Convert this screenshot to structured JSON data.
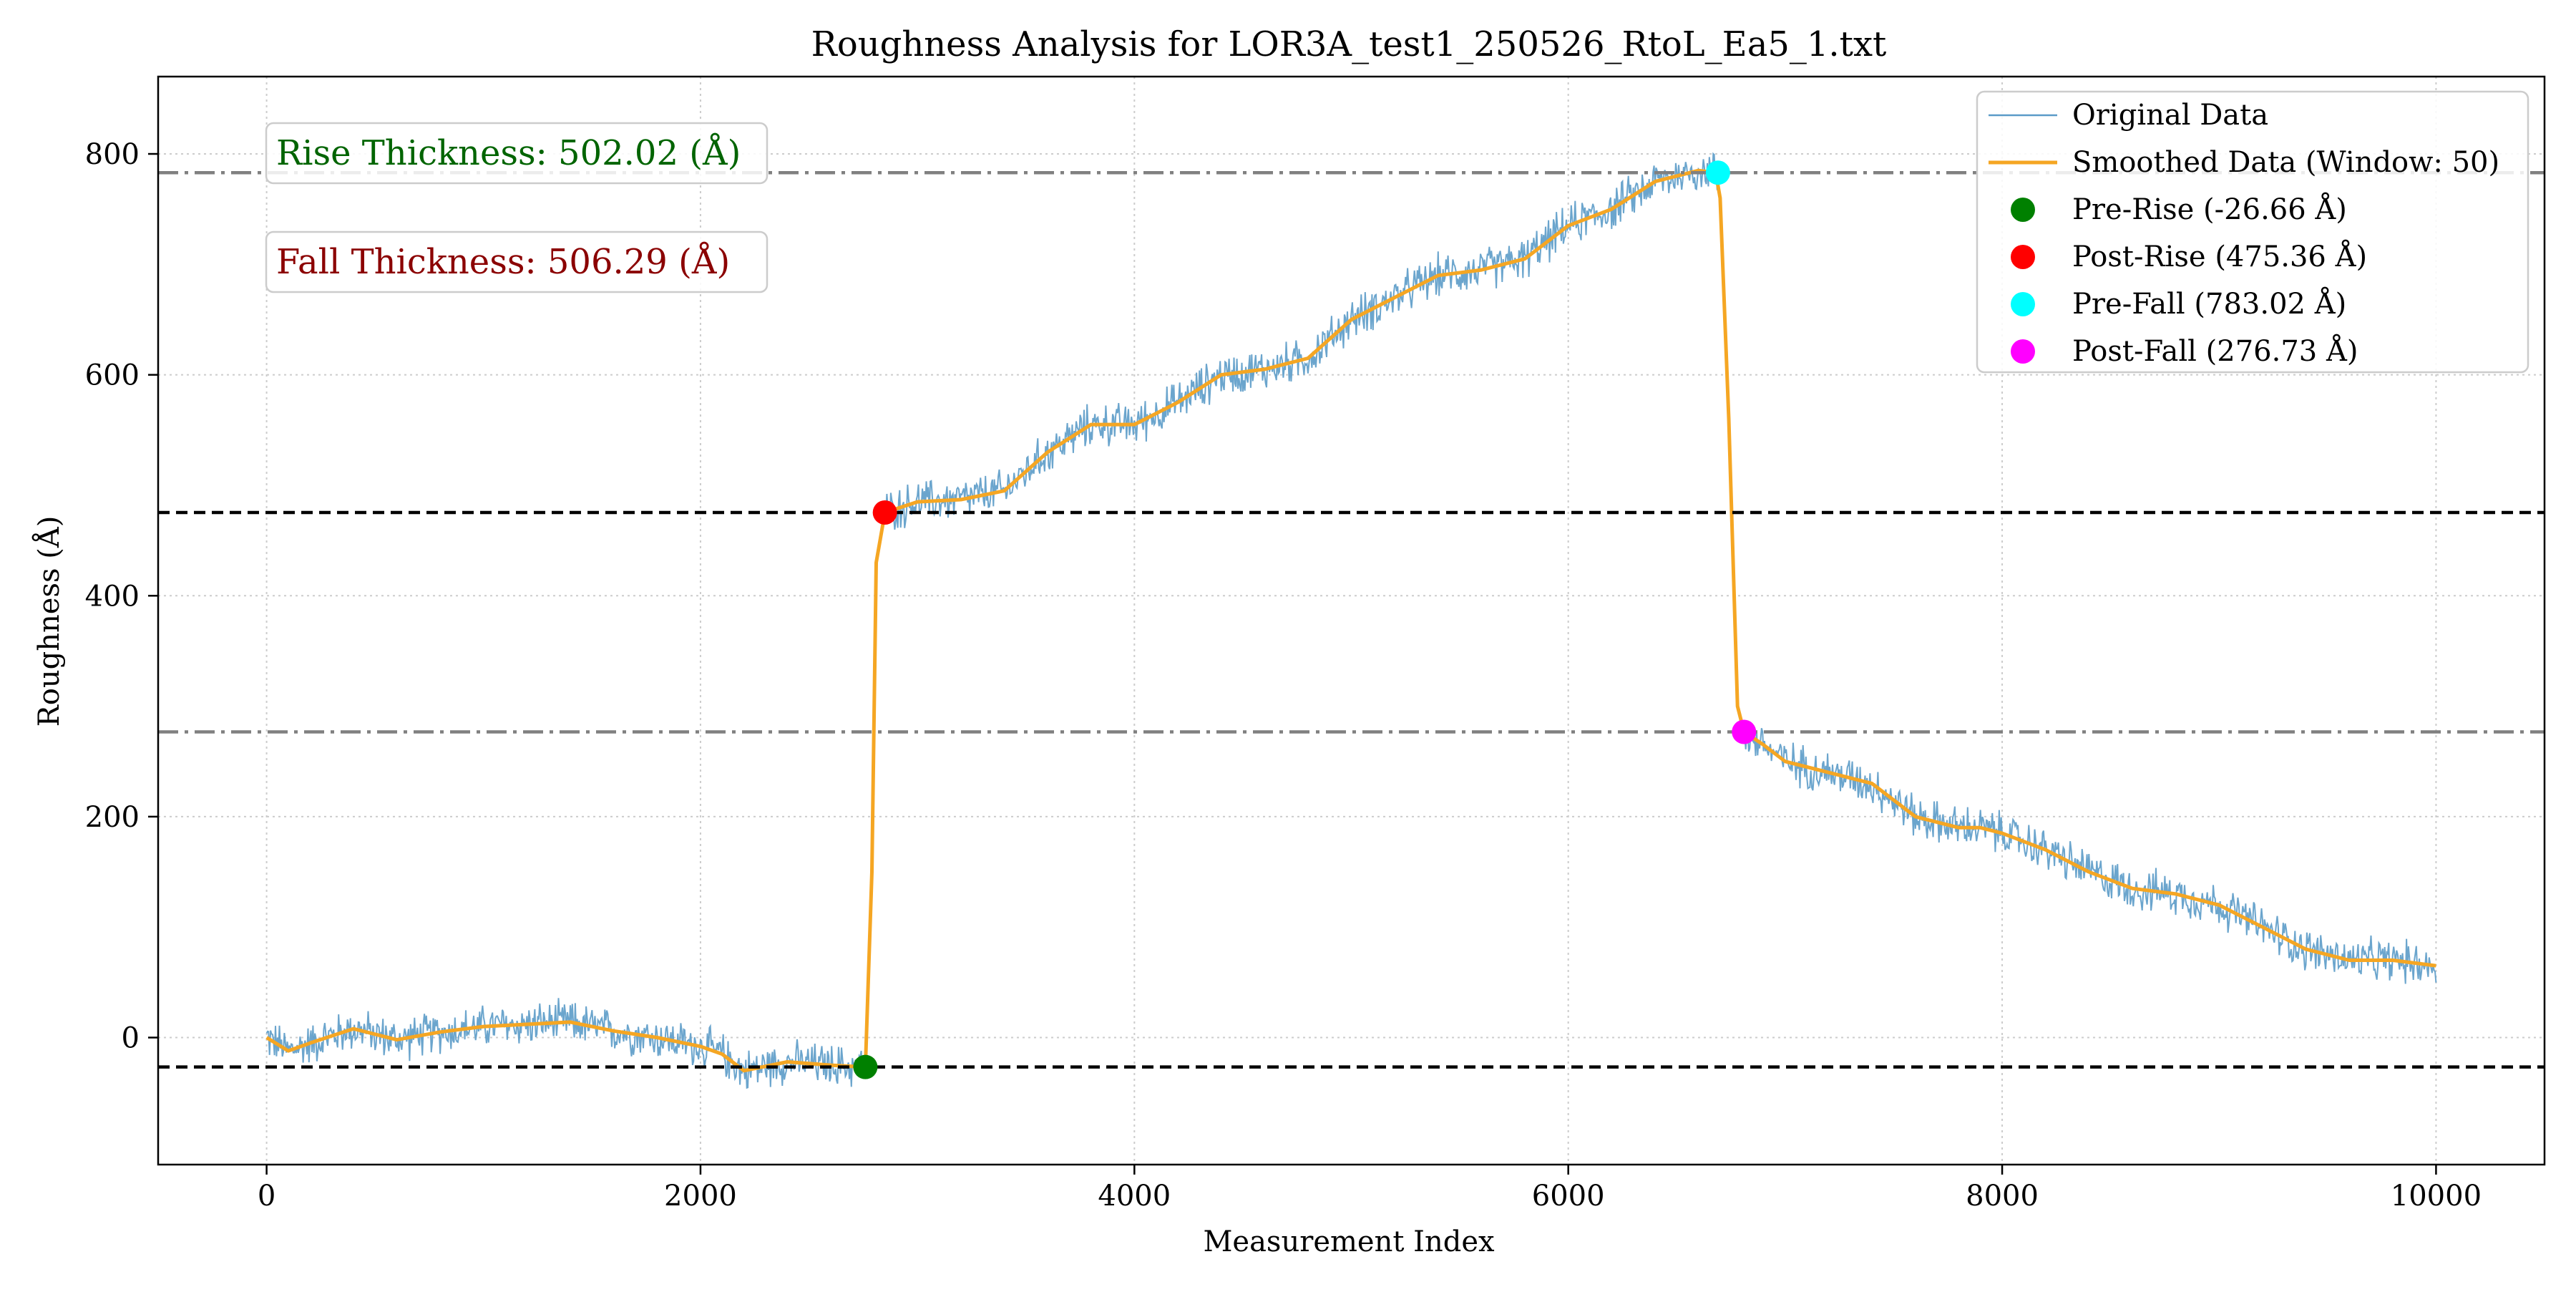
{
  "chart_data": {
    "type": "line",
    "title": "Roughness Analysis for LOR3A_test1_250526_RtoL_Ea5_1.txt",
    "xlabel": "Measurement Index",
    "ylabel": "Roughness (Å)",
    "xlim": [
      -500,
      10500
    ],
    "ylim": [
      -115,
      870
    ],
    "xticks": [
      0,
      2000,
      4000,
      6000,
      8000,
      10000
    ],
    "yticks": [
      0,
      200,
      400,
      600,
      800
    ],
    "grid": true,
    "legend_position": "top-right",
    "colors": {
      "original": "#5b9bc8",
      "smoothed": "#f5a623",
      "pre_rise": "#008000",
      "post_rise": "#ff0000",
      "pre_fall": "#00ffff",
      "post_fall": "#ff00ff",
      "dashed_line": "#000000",
      "dashdot_line": "#808080",
      "rise_text": "#006400",
      "fall_text": "#8b0000"
    },
    "series": [
      {
        "name": "Original Data",
        "noise_amplitude": 18,
        "x": [
          0,
          100,
          200,
          400,
          600,
          800,
          1000,
          1200,
          1400,
          1600,
          1800,
          2000,
          2100,
          2200,
          2400,
          2600,
          2760,
          2790,
          2810,
          2850,
          3000,
          3200,
          3400,
          3600,
          3800,
          4000,
          4200,
          4400,
          4600,
          4800,
          5000,
          5200,
          5400,
          5600,
          5800,
          6000,
          6200,
          6400,
          6600,
          6680,
          6700,
          6740,
          6780,
          6810,
          6900,
          7000,
          7200,
          7400,
          7600,
          7800,
          7900,
          8000,
          8200,
          8400,
          8600,
          8800,
          9000,
          9200,
          9400,
          9600,
          9800,
          10000
        ],
        "y": [
          0,
          -12,
          -5,
          8,
          -2,
          5,
          10,
          12,
          14,
          6,
          0,
          -8,
          -15,
          -30,
          -22,
          -25,
          -26.66,
          150,
          430,
          475.36,
          485,
          487,
          495,
          530,
          555,
          555,
          575,
          600,
          605,
          615,
          650,
          670,
          690,
          695,
          705,
          735,
          750,
          775,
          785,
          783.02,
          760,
          560,
          300,
          276.73,
          265,
          250,
          240,
          230,
          200,
          190,
          190,
          185,
          170,
          150,
          135,
          130,
          120,
          100,
          80,
          70,
          70,
          65
        ]
      },
      {
        "name": "Smoothed Data (Window: 50)",
        "x": [
          0,
          100,
          200,
          400,
          600,
          800,
          1000,
          1200,
          1400,
          1600,
          1800,
          2000,
          2100,
          2200,
          2400,
          2600,
          2760,
          2790,
          2810,
          2850,
          3000,
          3200,
          3400,
          3600,
          3800,
          4000,
          4200,
          4400,
          4600,
          4800,
          5000,
          5200,
          5400,
          5600,
          5800,
          6000,
          6200,
          6400,
          6600,
          6680,
          6700,
          6740,
          6780,
          6810,
          6900,
          7000,
          7200,
          7400,
          7600,
          7800,
          7900,
          8000,
          8200,
          8400,
          8600,
          8800,
          9000,
          9200,
          9400,
          9600,
          9800,
          10000
        ],
        "y": [
          0,
          -12,
          -5,
          8,
          -2,
          5,
          10,
          12,
          14,
          6,
          0,
          -8,
          -15,
          -30,
          -22,
          -25,
          -26.66,
          150,
          430,
          475.36,
          485,
          487,
          495,
          530,
          555,
          555,
          575,
          600,
          605,
          615,
          650,
          670,
          690,
          695,
          705,
          735,
          750,
          775,
          785,
          783.02,
          760,
          560,
          300,
          276.73,
          265,
          250,
          240,
          230,
          200,
          190,
          190,
          185,
          170,
          150,
          135,
          130,
          120,
          100,
          80,
          70,
          70,
          65
        ]
      }
    ],
    "points": [
      {
        "name": "Pre-Rise (-26.66 Å)",
        "x": 2760,
        "y": -26.66,
        "color_key": "pre_rise"
      },
      {
        "name": "Post-Rise (475.36 Å)",
        "x": 2850,
        "y": 475.36,
        "color_key": "post_rise"
      },
      {
        "name": "Pre-Fall (783.02 Å)",
        "x": 6690,
        "y": 783.02,
        "color_key": "pre_fall"
      },
      {
        "name": "Post-Fall (276.73 Å)",
        "x": 6810,
        "y": 276.73,
        "color_key": "post_fall"
      }
    ],
    "hlines": [
      {
        "y": -26.66,
        "style": "dashed"
      },
      {
        "y": 475.36,
        "style": "dashed"
      },
      {
        "y": 783.02,
        "style": "dashdot"
      },
      {
        "y": 276.73,
        "style": "dashdot"
      }
    ],
    "annotations": [
      {
        "text": "Rise Thickness: 502.02 (Å)",
        "color_key": "rise_text"
      },
      {
        "text": "Fall Thickness: 506.29 (Å)",
        "color_key": "fall_text"
      }
    ],
    "legend": [
      {
        "label": "Original Data",
        "kind": "line",
        "color_key": "original"
      },
      {
        "label": "Smoothed Data (Window: 50)",
        "kind": "line",
        "color_key": "smoothed"
      },
      {
        "label": "Pre-Rise (-26.66 Å)",
        "kind": "marker",
        "color_key": "pre_rise"
      },
      {
        "label": "Post-Rise (475.36 Å)",
        "kind": "marker",
        "color_key": "post_rise"
      },
      {
        "label": "Pre-Fall (783.02 Å)",
        "kind": "marker",
        "color_key": "pre_fall"
      },
      {
        "label": "Post-Fall (276.73 Å)",
        "kind": "marker",
        "color_key": "post_fall"
      }
    ]
  }
}
